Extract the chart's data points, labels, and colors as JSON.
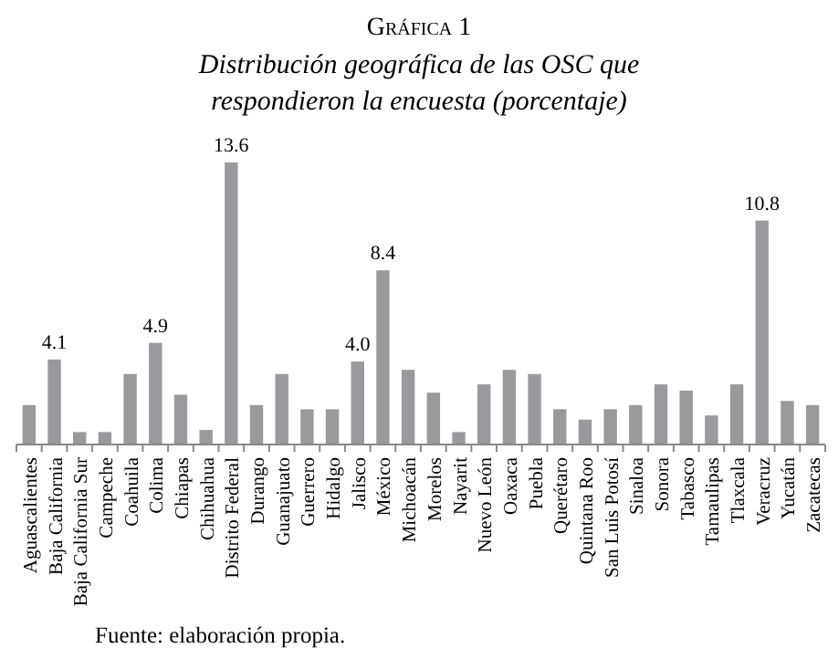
{
  "chart_data": {
    "type": "bar",
    "title": "Gráfica 1",
    "subtitle": "Distribución geográfica de las OSC que respondieron la encuesta (porcentaje)",
    "annotations": [
      "Fuente: elaboración propia."
    ],
    "categories": [
      "Aguascalientes",
      "Baja California",
      "Baja California Sur",
      "Campeche",
      "Coahuila",
      "Colima",
      "Chiapas",
      "Chihuahua",
      "Distrito Federal",
      "Durango",
      "Guanajuato",
      "Guerrero",
      "Hidalgo",
      "Jalisco",
      "México",
      "Michoacán",
      "Morelos",
      "Nayarit",
      "Nuevo León",
      "Oaxaca",
      "Puebla",
      "Querétaro",
      "Quintana Roo",
      "San Luis Potosí",
      "Sinaloa",
      "Sonora",
      "Tabasco",
      "Tamaulipas",
      "Tlaxcala",
      "Veracruz",
      "Yucatán",
      "Zacatecas"
    ],
    "values": [
      1.9,
      4.1,
      0.6,
      0.6,
      3.4,
      4.9,
      2.4,
      0.7,
      13.6,
      1.9,
      3.4,
      1.7,
      1.7,
      4.0,
      8.4,
      3.6,
      2.5,
      0.6,
      2.9,
      3.6,
      3.4,
      1.7,
      1.2,
      1.7,
      1.9,
      2.9,
      2.6,
      1.4,
      2.9,
      10.8,
      2.1,
      1.9
    ],
    "value_labels": [
      null,
      "4.1",
      null,
      null,
      null,
      "4.9",
      null,
      null,
      "13.6",
      null,
      null,
      null,
      null,
      "4.0",
      "8.4",
      null,
      null,
      null,
      null,
      null,
      null,
      null,
      null,
      null,
      null,
      null,
      null,
      null,
      null,
      "10.8",
      null,
      null
    ],
    "color": "#9a9a9e"
  }
}
